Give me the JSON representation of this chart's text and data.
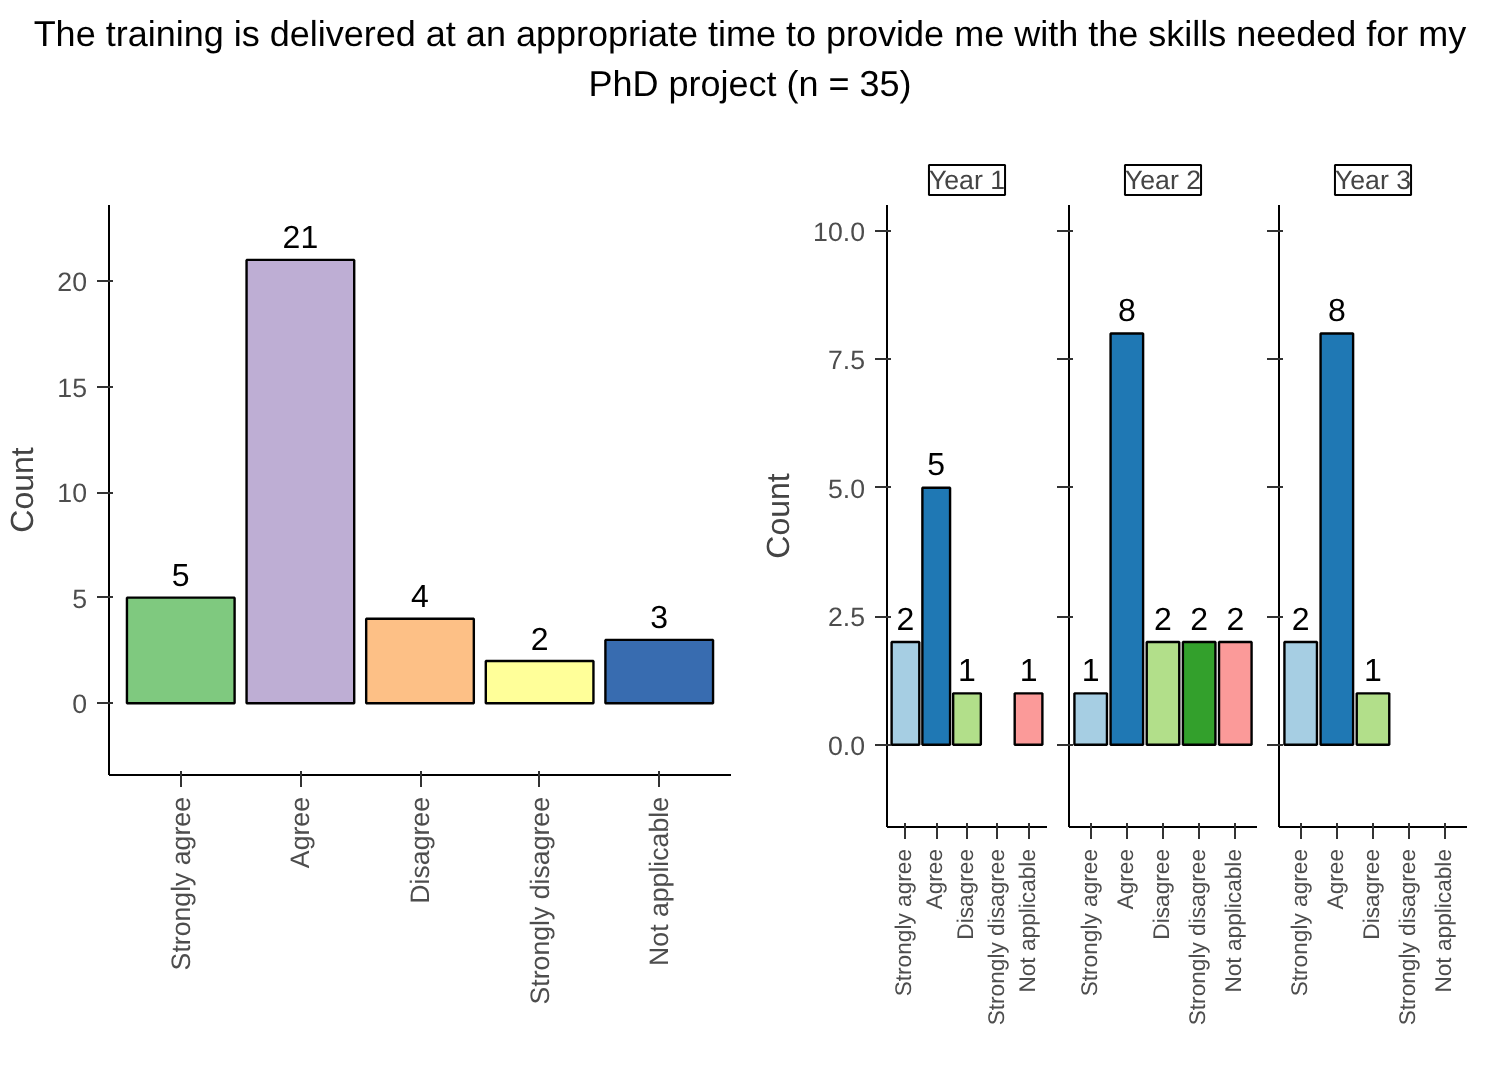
{
  "chart_data": [
    {
      "type": "bar",
      "title": "The training is delivered at an appropriate time to provide me with the skills needed for my PhD project (n = 35)",
      "ylabel": "Count",
      "categories": [
        "Strongly agree",
        "Agree",
        "Disagree",
        "Strongly disagree",
        "Not applicable"
      ],
      "values": [
        5,
        21,
        4,
        2,
        3
      ],
      "colors": [
        "#7fc97f",
        "#beaed4",
        "#fdc086",
        "#ffff99",
        "#386cb0"
      ],
      "ylim": [
        -3.4,
        23.6
      ],
      "yticks": [
        0,
        5,
        10,
        15,
        20
      ],
      "data_labels": true,
      "grid": false
    },
    {
      "type": "bar",
      "title": "Year 1",
      "ylabel": "Count",
      "categories": [
        "Strongly agree",
        "Agree",
        "Disagree",
        "Strongly disagree",
        "Not applicable"
      ],
      "values": [
        2,
        5,
        1,
        null,
        1
      ],
      "colors": [
        "#a6cee3",
        "#1f78b4",
        "#b2df8a",
        "#33a02c",
        "#fb9a99"
      ],
      "ylim": [
        -1.6,
        10.5
      ],
      "yticks": [
        {
          "value": 0,
          "label": "0.0"
        },
        {
          "value": 2.5,
          "label": "2.5"
        },
        {
          "value": 5,
          "label": "5.0"
        },
        {
          "value": 7.5,
          "label": "7.5"
        },
        {
          "value": 10,
          "label": "10.0"
        }
      ],
      "data_labels": true,
      "grid": false
    },
    {
      "type": "bar",
      "title": "Year 2",
      "categories": [
        "Strongly agree",
        "Agree",
        "Disagree",
        "Strongly disagree",
        "Not applicable"
      ],
      "values": [
        1,
        8,
        2,
        2,
        2
      ],
      "colors": [
        "#a6cee3",
        "#1f78b4",
        "#b2df8a",
        "#33a02c",
        "#fb9a99"
      ],
      "ylim": [
        -1.6,
        10.5
      ],
      "yticks": [
        0,
        2.5,
        5,
        7.5,
        10
      ],
      "tick_labels": "x",
      "data_labels": true,
      "grid": false
    },
    {
      "type": "bar",
      "title": "Year 3",
      "categories": [
        "Strongly agree",
        "Agree",
        "Disagree",
        "Strongly disagree",
        "Not applicable"
      ],
      "values": [
        2,
        8,
        1,
        null,
        null
      ],
      "colors": [
        "#a6cee3",
        "#1f78b4",
        "#b2df8a",
        "#33a02c",
        "#fb9a99"
      ],
      "ylim": [
        -1.6,
        10.5
      ],
      "yticks": [
        0,
        2.5,
        5,
        7.5,
        10
      ],
      "tick_labels": "x",
      "data_labels": true,
      "grid": false
    }
  ]
}
